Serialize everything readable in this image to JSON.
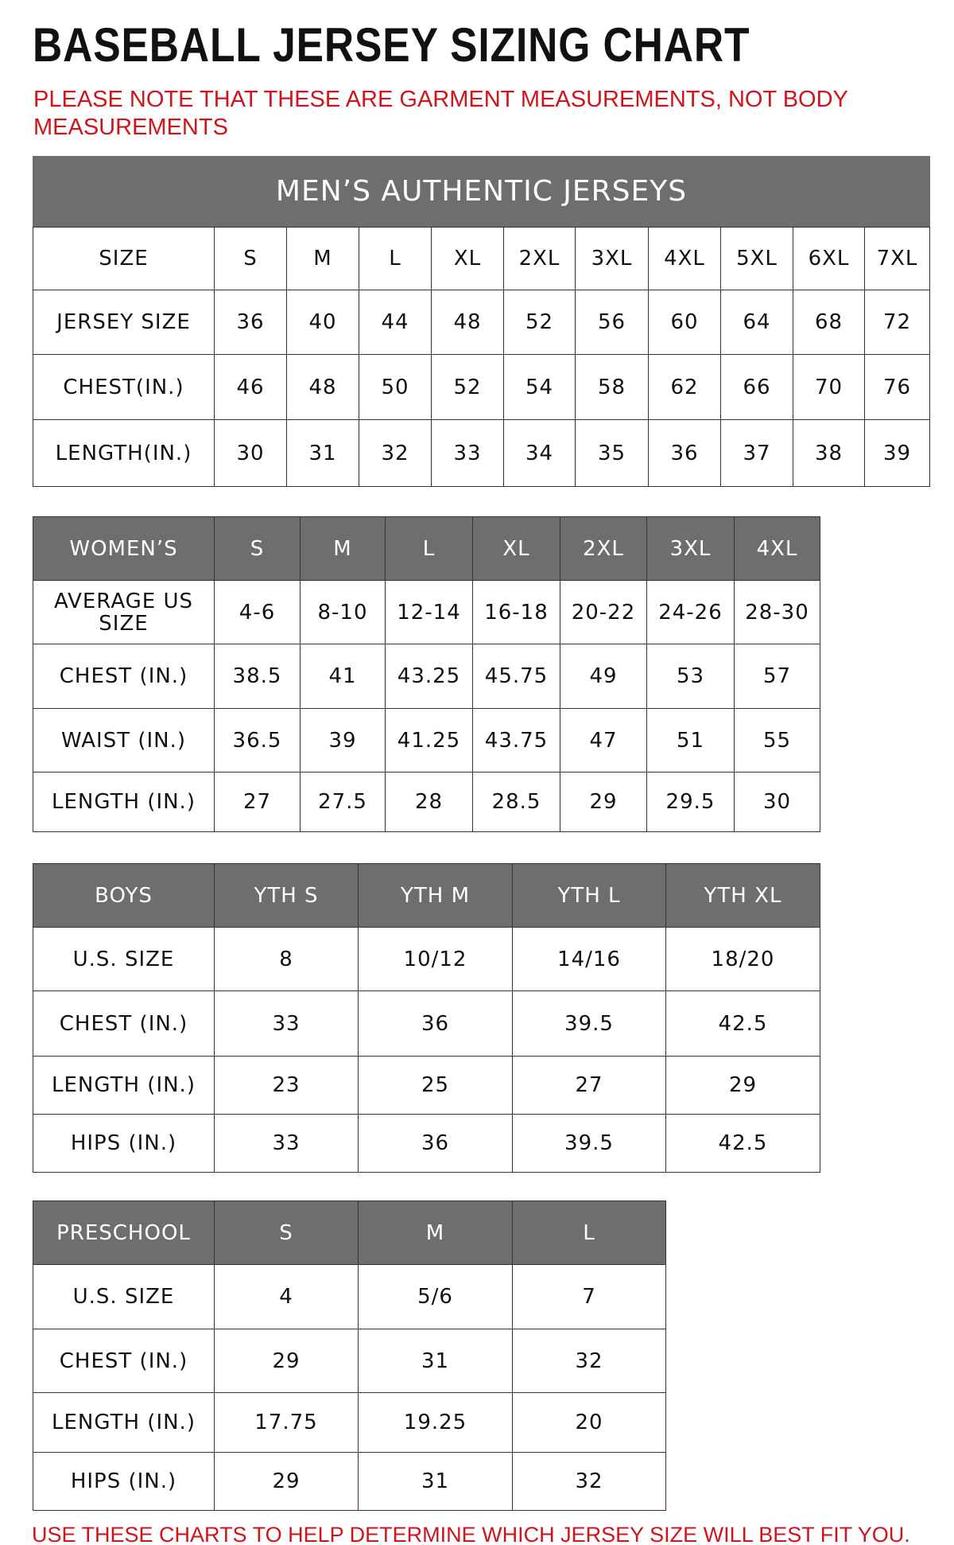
{
  "header": {
    "title": "BASEBALL JERSEY SIZING CHART",
    "note": "PLEASE NOTE THAT THESE ARE GARMENT MEASUREMENTS, NOT BODY MEASUREMENTS"
  },
  "tables": [
    {
      "title": "MEN’S AUTHENTIC JERSEYS",
      "header": [
        "SIZE",
        "S",
        "M",
        "L",
        "XL",
        "2XL",
        "3XL",
        "4XL",
        "5XL",
        "6XL",
        "7XL"
      ],
      "rows": [
        [
          "JERSEY SIZE",
          "36",
          "40",
          "44",
          "48",
          "52",
          "56",
          "60",
          "64",
          "68",
          "72"
        ],
        [
          "CHEST(IN.)",
          "46",
          "48",
          "50",
          "52",
          "54",
          "58",
          "62",
          "66",
          "70",
          "76"
        ],
        [
          "LENGTH(IN.)",
          "30",
          "31",
          "32",
          "33",
          "34",
          "35",
          "36",
          "37",
          "38",
          "39"
        ]
      ]
    },
    {
      "header": [
        "WOMEN’S",
        "S",
        "M",
        "L",
        "XL",
        "2XL",
        "3XL",
        "4XL"
      ],
      "rows": [
        [
          "AVERAGE US SIZE",
          "4-6",
          "8-10",
          "12-14",
          "16-18",
          "20-22",
          "24-26",
          "28-30"
        ],
        [
          "CHEST (IN.)",
          "38.5",
          "41",
          "43.25",
          "45.75",
          "49",
          "53",
          "57"
        ],
        [
          "WAIST (IN.)",
          "36.5",
          "39",
          "41.25",
          "43.75",
          "47",
          "51",
          "55"
        ],
        [
          "LENGTH (IN.)",
          "27",
          "27.5",
          "28",
          "28.5",
          "29",
          "29.5",
          "30"
        ]
      ]
    },
    {
      "header": [
        "BOYS",
        "YTH S",
        "YTH M",
        "YTH L",
        "YTH XL"
      ],
      "rows": [
        [
          "U.S. SIZE",
          "8",
          "10/12",
          "14/16",
          "18/20"
        ],
        [
          "CHEST (IN.)",
          "33",
          "36",
          "39.5",
          "42.5"
        ],
        [
          "LENGTH (IN.)",
          "23",
          "25",
          "27",
          "29"
        ],
        [
          "HIPS (IN.)",
          "33",
          "36",
          "39.5",
          "42.5"
        ]
      ]
    },
    {
      "header": [
        "PRESCHOOL",
        "S",
        "M",
        "L"
      ],
      "rows": [
        [
          "U.S. SIZE",
          "4",
          "5/6",
          "7"
        ],
        [
          "CHEST (IN.)",
          "29",
          "31",
          "32"
        ],
        [
          "LENGTH (IN.)",
          "17.75",
          "19.25",
          "20"
        ],
        [
          "HIPS (IN.)",
          "29",
          "31",
          "32"
        ]
      ]
    }
  ],
  "footer": "USE THESE CHARTS TO HELP DETERMINE WHICH JERSEY SIZE WILL BEST FIT YOU."
}
